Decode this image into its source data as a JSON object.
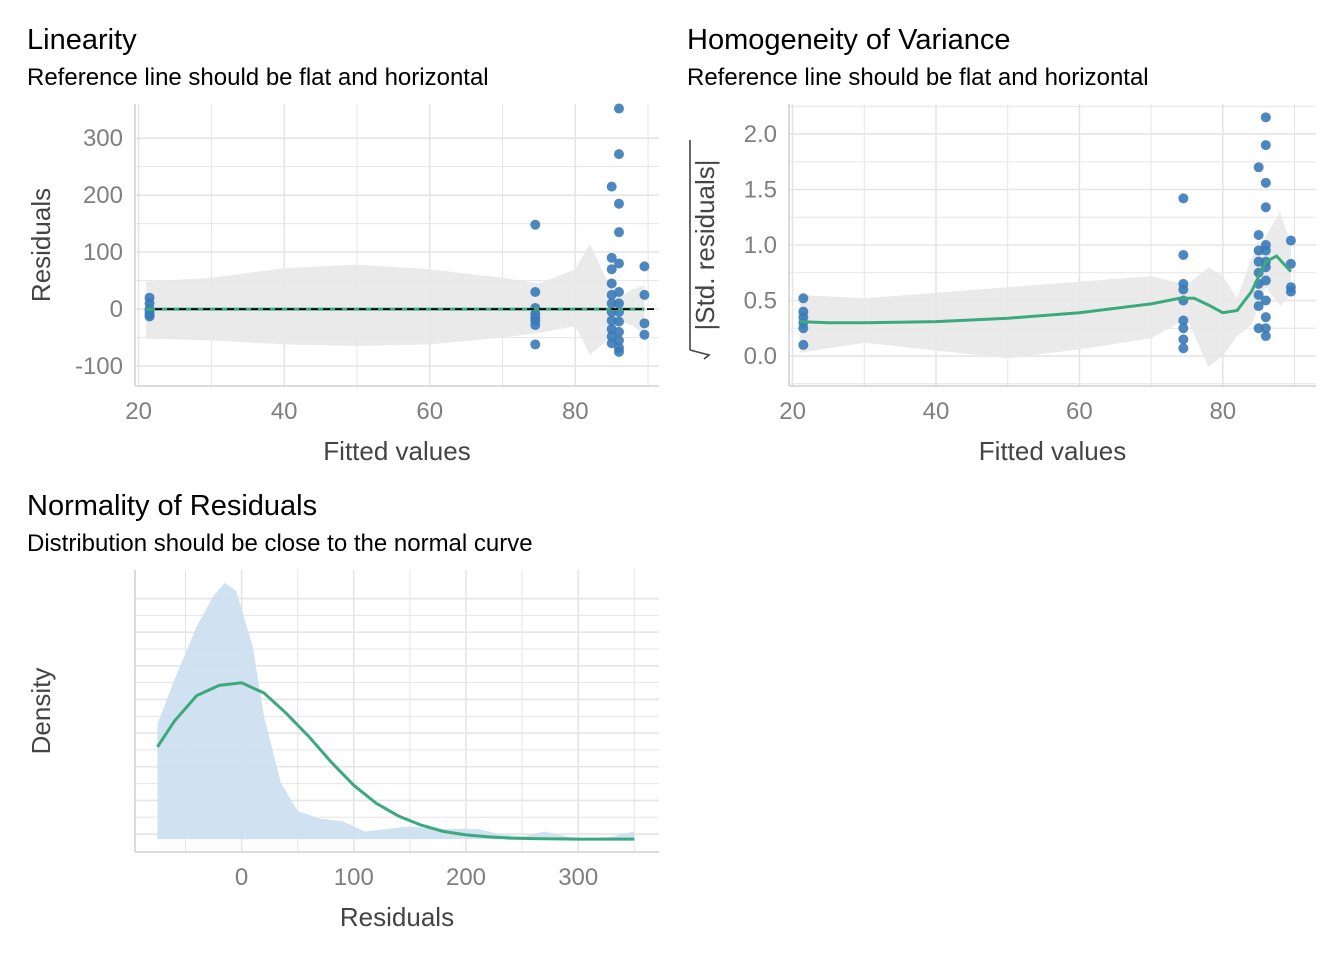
{
  "colors": {
    "point": "#3a7ab8",
    "fit": "#3aaa7e",
    "ribbon": "#e8e8e8",
    "density_fill": "#cddff0",
    "grid": "#e5e5e5",
    "axis_text": "#7f7f7f",
    "axis_title": "#444444"
  },
  "chart_data": [
    {
      "type": "scatter",
      "title": "Linearity",
      "subtitle": "Reference line should be flat and horizontal",
      "xlabel": "Fitted values",
      "ylabel": "Residuals",
      "xlim": [
        19.5,
        91.5
      ],
      "ylim": [
        -135,
        360
      ],
      "xticks": [
        20,
        40,
        60,
        80
      ],
      "yticks": [
        -100,
        0,
        100,
        200,
        300
      ],
      "grid": true,
      "reference_line": {
        "y": 0,
        "style": "dashed"
      },
      "points": [
        [
          21.5,
          20
        ],
        [
          21.5,
          10
        ],
        [
          21.5,
          0
        ],
        [
          21.5,
          -5
        ],
        [
          21.5,
          -10
        ],
        [
          21.5,
          -13
        ],
        [
          74.5,
          148
        ],
        [
          74.5,
          30
        ],
        [
          74.5,
          2
        ],
        [
          74.5,
          -8
        ],
        [
          74.5,
          -15
        ],
        [
          74.5,
          -20
        ],
        [
          74.5,
          -28
        ],
        [
          74.5,
          -62
        ],
        [
          85,
          215
        ],
        [
          85,
          90
        ],
        [
          85,
          70
        ],
        [
          85,
          45
        ],
        [
          85,
          25
        ],
        [
          85,
          10
        ],
        [
          85,
          -5
        ],
        [
          85,
          -20
        ],
        [
          85,
          -35
        ],
        [
          85,
          -48
        ],
        [
          85,
          -60
        ],
        [
          86,
          352
        ],
        [
          86,
          272
        ],
        [
          86,
          185
        ],
        [
          86,
          135
        ],
        [
          86,
          80
        ],
        [
          86,
          30
        ],
        [
          86,
          10
        ],
        [
          86,
          -5
        ],
        [
          86,
          -22
        ],
        [
          86,
          -40
        ],
        [
          86,
          -55
        ],
        [
          86,
          -68
        ],
        [
          86,
          -75
        ],
        [
          89.5,
          75
        ],
        [
          89.5,
          25
        ],
        [
          89.5,
          -25
        ],
        [
          89.5,
          -45
        ]
      ],
      "fit_line": [
        [
          21,
          0
        ],
        [
          89.5,
          0
        ]
      ],
      "ribbon": [
        [
          21,
          -52,
          48
        ],
        [
          30,
          -55,
          55
        ],
        [
          40,
          -62,
          72
        ],
        [
          50,
          -65,
          78
        ],
        [
          60,
          -62,
          70
        ],
        [
          70,
          -50,
          55
        ],
        [
          75,
          -42,
          45
        ],
        [
          80,
          -30,
          70
        ],
        [
          82,
          -80,
          115
        ],
        [
          84,
          -60,
          60
        ],
        [
          86,
          -20,
          20
        ],
        [
          88,
          -30,
          35
        ],
        [
          89.5,
          -45,
          42
        ]
      ]
    },
    {
      "type": "scatter",
      "title": "Homogeneity of Variance",
      "subtitle": "Reference line should be flat and horizontal",
      "xlabel": "Fitted values",
      "ylabel": "|Std. residuals|",
      "xlim": [
        19.5,
        93
      ],
      "ylim": [
        -0.27,
        2.27
      ],
      "xticks": [
        20,
        40,
        60,
        80
      ],
      "yticks": [
        0.0,
        0.5,
        1.0,
        1.5,
        2.0
      ],
      "ytick_labels": [
        "0.0",
        "0.5",
        "1.0",
        "1.5",
        "2.0"
      ],
      "grid": true,
      "points": [
        [
          21.5,
          0.52
        ],
        [
          21.5,
          0.4
        ],
        [
          21.5,
          0.35
        ],
        [
          21.5,
          0.3
        ],
        [
          21.5,
          0.25
        ],
        [
          21.5,
          0.1
        ],
        [
          74.5,
          1.42
        ],
        [
          74.5,
          0.91
        ],
        [
          74.5,
          0.65
        ],
        [
          74.5,
          0.6
        ],
        [
          74.5,
          0.5
        ],
        [
          74.5,
          0.32
        ],
        [
          74.5,
          0.25
        ],
        [
          74.5,
          0.15
        ],
        [
          74.5,
          0.07
        ],
        [
          85,
          1.7
        ],
        [
          85,
          1.09
        ],
        [
          85,
          0.95
        ],
        [
          85,
          0.85
        ],
        [
          85,
          0.75
        ],
        [
          85,
          0.65
        ],
        [
          85,
          0.55
        ],
        [
          85,
          0.45
        ],
        [
          85,
          0.25
        ],
        [
          86,
          2.15
        ],
        [
          86,
          1.9
        ],
        [
          86,
          1.56
        ],
        [
          86,
          1.34
        ],
        [
          86,
          1.0
        ],
        [
          86,
          0.95
        ],
        [
          86,
          0.85
        ],
        [
          86,
          0.8
        ],
        [
          86,
          0.68
        ],
        [
          86,
          0.5
        ],
        [
          86,
          0.35
        ],
        [
          86,
          0.25
        ],
        [
          86,
          0.18
        ],
        [
          89.5,
          1.04
        ],
        [
          89.5,
          0.83
        ],
        [
          89.5,
          0.62
        ],
        [
          89.5,
          0.58
        ]
      ],
      "fit_line": [
        [
          21,
          0.31
        ],
        [
          25,
          0.3
        ],
        [
          30,
          0.3
        ],
        [
          40,
          0.31
        ],
        [
          50,
          0.34
        ],
        [
          60,
          0.39
        ],
        [
          70,
          0.47
        ],
        [
          74,
          0.52
        ],
        [
          76,
          0.52
        ],
        [
          78,
          0.46
        ],
        [
          80,
          0.39
        ],
        [
          82,
          0.41
        ],
        [
          84,
          0.58
        ],
        [
          86,
          0.85
        ],
        [
          87.5,
          0.9
        ],
        [
          89.5,
          0.76
        ]
      ],
      "ribbon": [
        [
          21,
          0.03,
          0.55
        ],
        [
          30,
          0.12,
          0.52
        ],
        [
          40,
          0.05,
          0.57
        ],
        [
          50,
          -0.02,
          0.62
        ],
        [
          60,
          0.06,
          0.67
        ],
        [
          70,
          0.16,
          0.72
        ],
        [
          75,
          0.34,
          0.64
        ],
        [
          78,
          -0.1,
          0.8
        ],
        [
          80,
          0.0,
          0.72
        ],
        [
          82,
          0.18,
          0.52
        ],
        [
          84,
          0.28,
          0.88
        ],
        [
          86,
          0.62,
          1.08
        ],
        [
          88,
          0.45,
          1.3
        ],
        [
          89.5,
          0.55,
          1.0
        ]
      ]
    },
    {
      "type": "area",
      "title": "Normality of Residuals",
      "subtitle": "Distribution should be close to the normal curve",
      "xlabel": "Residuals",
      "ylabel": "Density",
      "xlim": [
        -95,
        372
      ],
      "ylim": [
        0,
        1
      ],
      "xticks": [
        0,
        100,
        200,
        300
      ],
      "grid": true,
      "density": [
        [
          -75,
          0.45
        ],
        [
          -60,
          0.62
        ],
        [
          -40,
          0.83
        ],
        [
          -25,
          0.95
        ],
        [
          -15,
          1.0
        ],
        [
          -5,
          0.97
        ],
        [
          10,
          0.75
        ],
        [
          20,
          0.48
        ],
        [
          35,
          0.22
        ],
        [
          50,
          0.11
        ],
        [
          70,
          0.08
        ],
        [
          90,
          0.07
        ],
        [
          110,
          0.03
        ],
        [
          130,
          0.04
        ],
        [
          150,
          0.05
        ],
        [
          170,
          0.04
        ],
        [
          190,
          0.04
        ],
        [
          210,
          0.04
        ],
        [
          230,
          0.02
        ],
        [
          250,
          0.01
        ],
        [
          270,
          0.03
        ],
        [
          290,
          0.01
        ],
        [
          310,
          0.0
        ],
        [
          330,
          0.01
        ],
        [
          350,
          0.03
        ]
      ],
      "normal_curve": [
        [
          -75,
          0.36
        ],
        [
          -60,
          0.46
        ],
        [
          -40,
          0.56
        ],
        [
          -20,
          0.6
        ],
        [
          0,
          0.61
        ],
        [
          20,
          0.57
        ],
        [
          40,
          0.49
        ],
        [
          60,
          0.4
        ],
        [
          80,
          0.3
        ],
        [
          100,
          0.21
        ],
        [
          120,
          0.14
        ],
        [
          140,
          0.09
        ],
        [
          160,
          0.055
        ],
        [
          180,
          0.03
        ],
        [
          200,
          0.017
        ],
        [
          220,
          0.009
        ],
        [
          240,
          0.004
        ],
        [
          260,
          0.002
        ],
        [
          280,
          0.001
        ],
        [
          300,
          0.0
        ],
        [
          350,
          0.0
        ]
      ]
    }
  ]
}
